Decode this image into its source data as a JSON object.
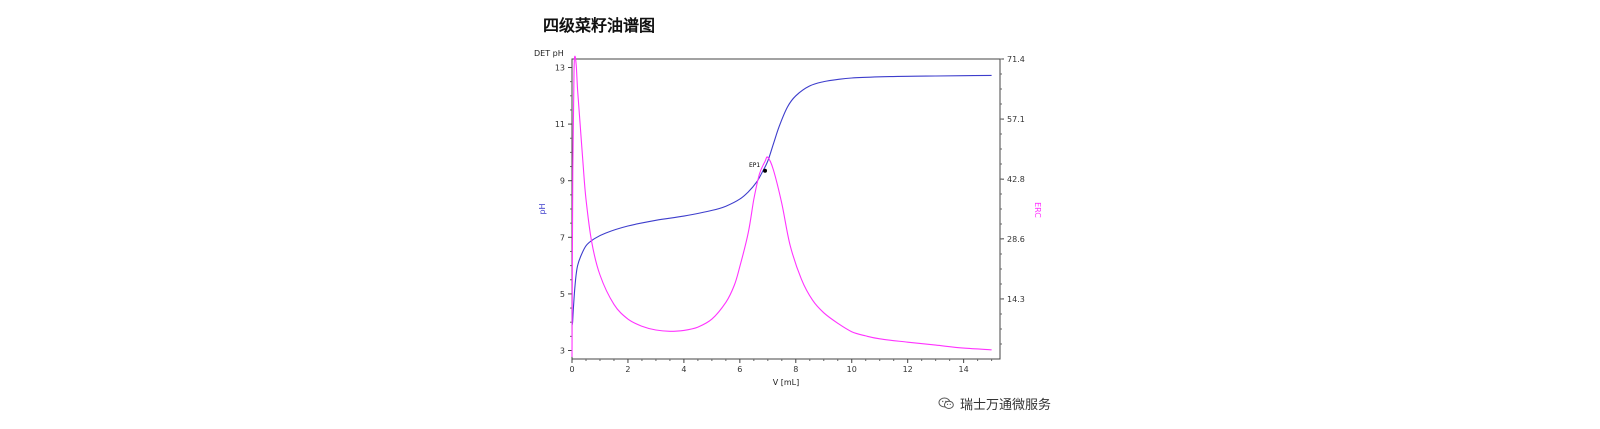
{
  "title": "四级菜籽油谱图",
  "watermark": {
    "text": "瑞士万通微服务",
    "icon": "wechat-icon"
  },
  "colors": {
    "ph": "#3d3dcc",
    "erc": "#ff33ff"
  },
  "chart_data": {
    "type": "line",
    "top_left_label": "DET pH",
    "xlabel": "V [mL]",
    "ylabel_left": "pH",
    "ylabel_right": "ERC",
    "xlim": [
      0,
      15.3
    ],
    "ylim_left": [
      2.7,
      13.3
    ],
    "ylim_right": [
      0,
      71.4
    ],
    "x_ticks": [
      0,
      2,
      4,
      6,
      8,
      10,
      12,
      14
    ],
    "y_ticks_left": [
      3,
      5,
      7,
      9,
      11,
      13
    ],
    "y_ticks_right": [
      "14.3",
      "28.6",
      "42.8",
      "57.1",
      "71.4"
    ],
    "annotation": {
      "label": "EP1",
      "x": 6.9,
      "y": 9.35
    },
    "grid": false,
    "series": [
      {
        "name": "pH",
        "axis": "left",
        "x": [
          0,
          0.02,
          0.05,
          0.1,
          0.15,
          0.2,
          0.3,
          0.5,
          0.8,
          1.2,
          2,
          3,
          4,
          5,
          5.5,
          6,
          6.3,
          6.6,
          6.8,
          7.0,
          7.2,
          7.4,
          7.7,
          8,
          8.5,
          9,
          9.5,
          10,
          11,
          12,
          13,
          14,
          15
        ],
        "y": [
          3.9,
          4.0,
          4.5,
          5.2,
          5.7,
          6.0,
          6.3,
          6.7,
          6.95,
          7.15,
          7.4,
          7.6,
          7.75,
          7.95,
          8.1,
          8.35,
          8.6,
          8.95,
          9.3,
          9.7,
          10.3,
          10.9,
          11.6,
          12.0,
          12.35,
          12.5,
          12.58,
          12.63,
          12.67,
          12.69,
          12.7,
          12.71,
          12.72
        ]
      },
      {
        "name": "ERC",
        "axis": "right",
        "x": [
          0,
          0.03,
          0.07,
          0.1,
          0.15,
          0.2,
          0.3,
          0.4,
          0.5,
          0.7,
          1.0,
          1.5,
          2,
          2.5,
          3,
          3.5,
          4,
          4.5,
          5,
          5.5,
          5.8,
          6,
          6.3,
          6.5,
          6.7,
          6.9,
          7.0,
          7.2,
          7.5,
          7.8,
          8.2,
          8.6,
          9,
          9.5,
          10,
          10.5,
          11,
          12,
          13,
          14,
          15
        ],
        "y": [
          0.5,
          45,
          68,
          72,
          70,
          64,
          55,
          46,
          38,
          28,
          20,
          13,
          9.5,
          7.8,
          6.9,
          6.6,
          6.8,
          7.6,
          9.5,
          13.5,
          17.5,
          22,
          30,
          38,
          44,
          47,
          48,
          45,
          37,
          27,
          19,
          14,
          11,
          8.5,
          6.5,
          5.5,
          4.8,
          4.0,
          3.3,
          2.6,
          2.2
        ]
      }
    ]
  }
}
